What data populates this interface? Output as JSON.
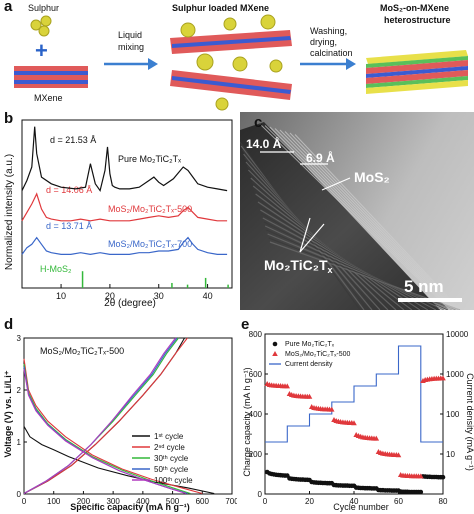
{
  "figure": {
    "panel_labels": [
      "a",
      "b",
      "c",
      "d",
      "e"
    ],
    "scheme": {
      "sulphur_label": "Sulphur",
      "mxene_label": "MXene",
      "loaded_label": "Sulphur loaded MXene",
      "step1": [
        "Liquid",
        "mixing"
      ],
      "step2": [
        "Washing,",
        "drying,",
        "calcination"
      ],
      "product_label": [
        "MoS₂-on-MXene",
        "heterostructure"
      ],
      "plus": "+"
    },
    "tem": {
      "label_140": "14.0 Å",
      "label_69": "6.9 Å",
      "label_mos2": "MoS₂",
      "label_mxene": "Mo₂TiC₂T",
      "label_mxene_sub": "x",
      "scalebar": "5 nm"
    },
    "colors": {
      "black": "#111111",
      "red": "#e0383c",
      "blue": "#3a67c9",
      "green": "#34b83a",
      "scheme_arrow": "#3b7fd0",
      "sulphur": "#d9d33a"
    }
  },
  "chart_data": [
    {
      "type": "line",
      "panel": "b",
      "xlabel": "2θ (degree)",
      "ylabel": "Normalized intensity (a.u.)",
      "xlim": [
        2,
        45
      ],
      "xticks": [
        10,
        20,
        30,
        40
      ],
      "series": [
        {
          "name": "Pure Mo₂TiC₂Tₓ",
          "annotation": "d = 21.53 Å",
          "color": "#111111",
          "x": [
            2,
            3,
            4,
            4.6,
            5,
            6,
            8,
            10,
            13,
            15,
            16,
            17,
            18,
            19,
            19.5,
            20,
            20.5,
            21,
            22,
            24,
            26,
            28,
            29,
            30,
            31,
            33,
            35,
            36,
            37,
            38,
            40,
            42,
            44
          ],
          "y": [
            0.58,
            0.64,
            0.72,
            0.96,
            0.8,
            0.66,
            0.62,
            0.6,
            0.59,
            0.6,
            0.74,
            0.62,
            0.58,
            0.7,
            0.84,
            0.68,
            0.61,
            0.6,
            0.59,
            0.59,
            0.6,
            0.64,
            0.66,
            0.63,
            0.61,
            0.65,
            0.72,
            0.7,
            0.66,
            0.62,
            0.6,
            0.59,
            0.58
          ]
        },
        {
          "name": "MoS₂/Mo₂TiC₂Tₓ-500",
          "annotation": "d = 14.06 Å",
          "color": "#e0383c",
          "x": [
            2,
            3,
            4,
            5,
            6,
            7,
            8,
            10,
            12,
            14,
            16,
            18,
            20,
            22,
            24,
            26,
            28,
            30,
            32,
            34,
            35,
            36,
            37,
            38,
            40,
            42,
            44
          ],
          "y": [
            0.4,
            0.45,
            0.5,
            0.56,
            0.47,
            0.42,
            0.41,
            0.4,
            0.4,
            0.41,
            0.4,
            0.41,
            0.4,
            0.4,
            0.4,
            0.41,
            0.42,
            0.43,
            0.42,
            0.43,
            0.46,
            0.48,
            0.45,
            0.42,
            0.41,
            0.4,
            0.4
          ]
        },
        {
          "name": "MoS₂/Mo₂TiC₂Tₓ-700",
          "annotation": "d = 13.71 Å",
          "color": "#3a67c9",
          "x": [
            2,
            3,
            4,
            5,
            6,
            7,
            8,
            10,
            12,
            14,
            16,
            18,
            20,
            22,
            24,
            26,
            28,
            30,
            32,
            34,
            35,
            36,
            37,
            38,
            40,
            42,
            44
          ],
          "y": [
            0.2,
            0.24,
            0.26,
            0.3,
            0.26,
            0.22,
            0.21,
            0.2,
            0.2,
            0.21,
            0.2,
            0.21,
            0.2,
            0.2,
            0.2,
            0.21,
            0.21,
            0.22,
            0.22,
            0.23,
            0.27,
            0.3,
            0.26,
            0.23,
            0.21,
            0.2,
            0.2
          ]
        },
        {
          "name": "H-MoS₂",
          "type": "sticks",
          "color": "#34b83a",
          "x": [
            14.4,
            32.7,
            35.9,
            39.6,
            44.2
          ],
          "y": [
            0.1,
            0.03,
            0.02,
            0.06,
            0.02
          ]
        }
      ]
    },
    {
      "type": "line",
      "panel": "d",
      "title": "MoS₂/Mo₂TiC₂Tₓ-500",
      "xlabel": "Specific capacity (mA h g⁻¹)",
      "ylabel": "Voltage (V) vs. Li/Li⁺",
      "xlim": [
        0,
        700
      ],
      "ylim": [
        0,
        3
      ],
      "xticks": [
        0,
        100,
        200,
        300,
        400,
        500,
        600,
        700
      ],
      "yticks": [
        0,
        1,
        2,
        3
      ],
      "legend_position": "right",
      "series": [
        {
          "name": "1ˢᵗ cycle",
          "color": "#111111",
          "discharge": {
            "x": [
              0,
              20,
              60,
              100,
              150,
              250,
              350,
              450,
              550,
              640
            ],
            "y": [
              1.3,
              1.1,
              0.95,
              0.85,
              0.72,
              0.5,
              0.35,
              0.22,
              0.12,
              0.01
            ]
          },
          "charge": {
            "x": [
              0,
              80,
              160,
              240,
              320,
              400,
              460,
              510,
              540
            ],
            "y": [
              0.01,
              0.25,
              0.55,
              0.95,
              1.4,
              1.9,
              2.3,
              2.7,
              3.0
            ]
          }
        },
        {
          "name": "2ⁿᵈ cycle",
          "color": "#e0383c",
          "discharge": {
            "x": [
              0,
              15,
              40,
              80,
              140,
              230,
              330,
              430,
              530,
              600
            ],
            "y": [
              2.6,
              2.0,
              1.7,
              1.4,
              1.1,
              0.75,
              0.48,
              0.28,
              0.12,
              0.01
            ]
          },
          "charge": {
            "x": [
              0,
              80,
              160,
              240,
              320,
              400,
              460,
              510,
              550
            ],
            "y": [
              0.01,
              0.25,
              0.55,
              0.95,
              1.4,
              1.9,
              2.3,
              2.7,
              3.0
            ]
          }
        },
        {
          "name": "30ᵗʰ cycle",
          "color": "#34b83a",
          "discharge": {
            "x": [
              0,
              15,
              40,
              80,
              140,
              230,
              330,
              420,
              500,
              560
            ],
            "y": [
              2.5,
              1.95,
              1.65,
              1.35,
              1.05,
              0.72,
              0.46,
              0.27,
              0.12,
              0.01
            ]
          },
          "charge": {
            "x": [
              0,
              75,
              150,
              225,
              300,
              375,
              435,
              480,
              520
            ],
            "y": [
              0.01,
              0.25,
              0.55,
              0.95,
              1.4,
              1.9,
              2.3,
              2.7,
              3.0
            ]
          }
        },
        {
          "name": "50ᵗʰ cycle",
          "color": "#3a67c9",
          "discharge": {
            "x": [
              0,
              15,
              40,
              80,
              140,
              230,
              320,
              410,
              490,
              550
            ],
            "y": [
              2.45,
              1.92,
              1.62,
              1.33,
              1.03,
              0.7,
              0.45,
              0.26,
              0.11,
              0.01
            ]
          },
          "charge": {
            "x": [
              0,
              75,
              150,
              225,
              295,
              370,
              430,
              475,
              515
            ],
            "y": [
              0.01,
              0.25,
              0.55,
              0.95,
              1.4,
              1.9,
              2.3,
              2.7,
              3.0
            ]
          }
        },
        {
          "name": "100ᵗʰ cycle",
          "color": "#b23bbf",
          "discharge": {
            "x": [
              0,
              15,
              40,
              80,
              140,
              230,
              320,
              410,
              490,
              545
            ],
            "y": [
              2.4,
              1.9,
              1.6,
              1.32,
              1.02,
              0.7,
              0.45,
              0.26,
              0.11,
              0.01
            ]
          },
          "charge": {
            "x": [
              0,
              75,
              150,
              225,
              295,
              365,
              425,
              470,
              510
            ],
            "y": [
              0.01,
              0.25,
              0.55,
              0.95,
              1.4,
              1.9,
              2.3,
              2.7,
              3.0
            ]
          }
        }
      ]
    },
    {
      "type": "scatter",
      "panel": "e",
      "xlabel": "Cycle number",
      "ylabel": "Charge capacity (mA h g⁻¹)",
      "y2label": "Current density (mA g⁻¹)",
      "xlim": [
        0,
        80
      ],
      "ylim": [
        0,
        800
      ],
      "y2lim": [
        1,
        10000
      ],
      "y2scale": "log",
      "xticks": [
        0,
        20,
        40,
        60,
        80
      ],
      "yticks": [
        0,
        200,
        400,
        600,
        800
      ],
      "y2ticks": [
        10,
        100,
        1000,
        10000
      ],
      "legend_position": "top-left",
      "series": [
        {
          "name": "Pure Mo₂TiC₂Tₓ",
          "marker": "circle",
          "color": "#111111",
          "x": [
            1,
            2,
            3,
            4,
            5,
            6,
            7,
            8,
            9,
            10,
            11,
            12,
            13,
            14,
            15,
            16,
            17,
            18,
            19,
            20,
            21,
            22,
            23,
            24,
            25,
            26,
            27,
            28,
            29,
            30,
            31,
            32,
            33,
            34,
            35,
            36,
            37,
            38,
            39,
            40,
            41,
            42,
            43,
            44,
            45,
            46,
            47,
            48,
            49,
            50,
            51,
            52,
            53,
            54,
            55,
            56,
            57,
            58,
            59,
            60,
            61,
            62,
            63,
            64,
            65,
            66,
            67,
            68,
            69,
            70,
            71,
            72,
            73,
            74,
            75,
            76,
            77,
            78,
            79,
            80
          ],
          "y": [
            110,
            103,
            100,
            98,
            96,
            95,
            94,
            93,
            92,
            92,
            78,
            76,
            75,
            74,
            73,
            72,
            72,
            71,
            71,
            70,
            60,
            58,
            57,
            56,
            56,
            55,
            55,
            54,
            54,
            54,
            45,
            44,
            43,
            43,
            42,
            42,
            42,
            41,
            41,
            41,
            32,
            31,
            30,
            30,
            29,
            29,
            29,
            28,
            28,
            28,
            20,
            19,
            19,
            18,
            18,
            18,
            17,
            17,
            17,
            17,
            12,
            11,
            11,
            11,
            10,
            10,
            10,
            10,
            10,
            10,
            88,
            87,
            86,
            86,
            85,
            85,
            85,
            84,
            84,
            84
          ]
        },
        {
          "name": "MoS₂/Mo₂TiC₂Tₓ-500",
          "marker": "triangle",
          "color": "#e0383c",
          "x": [
            1,
            2,
            3,
            4,
            5,
            6,
            7,
            8,
            9,
            10,
            11,
            12,
            13,
            14,
            15,
            16,
            17,
            18,
            19,
            20,
            21,
            22,
            23,
            24,
            25,
            26,
            27,
            28,
            29,
            30,
            31,
            32,
            33,
            34,
            35,
            36,
            37,
            38,
            39,
            40,
            41,
            42,
            43,
            44,
            45,
            46,
            47,
            48,
            49,
            50,
            51,
            52,
            53,
            54,
            55,
            56,
            57,
            58,
            59,
            60,
            61,
            62,
            63,
            64,
            65,
            66,
            67,
            68,
            69,
            70,
            71,
            72,
            73,
            74,
            75,
            76,
            77,
            78,
            79,
            80
          ],
          "y": [
            550,
            545,
            543,
            542,
            541,
            540,
            540,
            539,
            539,
            538,
            500,
            495,
            492,
            490,
            489,
            488,
            487,
            487,
            486,
            486,
            435,
            430,
            428,
            426,
            425,
            424,
            423,
            423,
            422,
            422,
            370,
            365,
            362,
            360,
            358,
            357,
            356,
            355,
            355,
            354,
            295,
            290,
            286,
            283,
            281,
            280,
            279,
            278,
            277,
            277,
            210,
            205,
            202,
            200,
            198,
            197,
            196,
            195,
            195,
            194,
            95,
            92,
            91,
            90,
            90,
            89,
            89,
            89,
            88,
            88,
            565,
            570,
            572,
            574,
            575,
            576,
            577,
            577,
            578,
            578
          ]
        },
        {
          "name": "Current density",
          "type": "line",
          "axis": "y2",
          "color": "#3a67c9",
          "x": [
            0,
            10,
            10,
            20,
            20,
            30,
            30,
            40,
            40,
            50,
            50,
            60,
            60,
            70,
            70,
            80
          ],
          "y": [
            20,
            20,
            50,
            50,
            100,
            100,
            200,
            200,
            500,
            500,
            1000,
            1000,
            5000,
            5000,
            20,
            20
          ]
        }
      ]
    }
  ]
}
